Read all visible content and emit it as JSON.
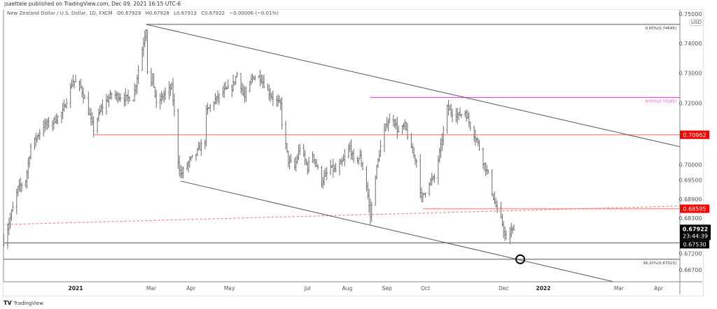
{
  "publisher": "jsaettele published on TradingView.com, Dec 09, 2021 16:15 UTC-6",
  "legend": {
    "symbol": "New Zealand Dollar / U.S. Dollar, 1D, FXCM",
    "open": "O0.67928",
    "high": "H0.67928",
    "low": "L0.67913",
    "close": "C0.67922",
    "change": "−0.00006 (−0.01%)"
  },
  "currency_badge": "USD",
  "footer_logo": "TradingView",
  "chart_data": {
    "type": "ohlc-bar",
    "scale": "log",
    "grid": false,
    "y_ticks": [
      "0.75000",
      "0.74000",
      "0.73000",
      "0.72000",
      "0.70000",
      "0.69500",
      "0.68900",
      "0.68300",
      "0.67200",
      "0.66700"
    ],
    "x_ticks": [
      {
        "label": "2021",
        "date": "2021-01-01",
        "bold": true
      },
      {
        "label": "Mar",
        "date": "2021-03-01"
      },
      {
        "label": "Apr",
        "date": "2021-04-01"
      },
      {
        "label": "May",
        "date": "2021-05-01"
      },
      {
        "label": "Jul",
        "date": "2021-07-01"
      },
      {
        "label": "Aug",
        "date": "2021-08-01"
      },
      {
        "label": "Sep",
        "date": "2021-09-01"
      },
      {
        "label": "Oct",
        "date": "2021-10-01"
      },
      {
        "label": "Dec",
        "date": "2021-12-01"
      },
      {
        "label": "2022",
        "date": "2022-01-01",
        "bold": true
      },
      {
        "label": "Mar",
        "date": "2022-03-01"
      },
      {
        "label": "Apr",
        "date": "2022-04-01"
      }
    ],
    "approx_closes": [
      [
        "2020-11-06",
        0.6758
      ],
      [
        "2020-11-11",
        0.683
      ],
      [
        "2020-11-17",
        0.6923
      ],
      [
        "2020-11-23",
        0.695
      ],
      [
        "2020-11-27",
        0.7057
      ],
      [
        "2020-12-07",
        0.7126
      ],
      [
        "2020-12-14",
        0.7137
      ],
      [
        "2020-12-22",
        0.7171
      ],
      [
        "2020-12-30",
        0.7275
      ],
      [
        "2021-01-05",
        0.7252
      ],
      [
        "2021-01-11",
        0.7171
      ],
      [
        "2021-01-15",
        0.7115
      ],
      [
        "2021-01-21",
        0.7183
      ],
      [
        "2021-01-29",
        0.7229
      ],
      [
        "2021-02-08",
        0.7217
      ],
      [
        "2021-02-15",
        0.7217
      ],
      [
        "2021-02-18",
        0.7287
      ],
      [
        "2021-02-25",
        0.7452
      ],
      [
        "2021-02-26",
        0.731
      ],
      [
        "2021-03-01",
        0.7264
      ],
      [
        "2021-03-02",
        0.7287
      ],
      [
        "2021-03-05",
        0.7194
      ],
      [
        "2021-03-11",
        0.7229
      ],
      [
        "2021-03-17",
        0.7252
      ],
      [
        "2021-03-19",
        0.7171
      ],
      [
        "2021-03-22",
        0.7012
      ],
      [
        "2021-03-24",
        0.6967
      ],
      [
        "2021-03-31",
        0.7012
      ],
      [
        "2021-04-05",
        0.7035
      ],
      [
        "2021-04-12",
        0.708
      ],
      [
        "2021-04-13",
        0.7171
      ],
      [
        "2021-04-19",
        0.7206
      ],
      [
        "2021-04-27",
        0.724
      ],
      [
        "2021-05-03",
        0.7252
      ],
      [
        "2021-05-07",
        0.7298
      ],
      [
        "2021-05-13",
        0.7217
      ],
      [
        "2021-05-19",
        0.7287
      ],
      [
        "2021-05-25",
        0.7287
      ],
      [
        "2021-05-31",
        0.724
      ],
      [
        "2021-06-04",
        0.7217
      ],
      [
        "2021-06-10",
        0.7194
      ],
      [
        "2021-06-11",
        0.7137
      ],
      [
        "2021-06-16",
        0.7012
      ],
      [
        "2021-06-21",
        0.699
      ],
      [
        "2021-06-25",
        0.7057
      ],
      [
        "2021-07-01",
        0.699
      ],
      [
        "2021-07-05",
        0.7035
      ],
      [
        "2021-07-12",
        0.6945
      ],
      [
        "2021-07-19",
        0.699
      ],
      [
        "2021-07-23",
        0.6979
      ],
      [
        "2021-07-29",
        0.7012
      ],
      [
        "2021-08-03",
        0.7057
      ],
      [
        "2021-08-06",
        0.7012
      ],
      [
        "2021-08-11",
        0.7024
      ],
      [
        "2021-08-16",
        0.6934
      ],
      [
        "2021-08-19",
        0.6835
      ],
      [
        "2021-08-23",
        0.6967
      ],
      [
        "2021-08-27",
        0.7057
      ],
      [
        "2021-09-01",
        0.7137
      ],
      [
        "2021-09-06",
        0.7149
      ],
      [
        "2021-09-10",
        0.7104
      ],
      [
        "2021-09-15",
        0.7126
      ],
      [
        "2021-09-20",
        0.7046
      ],
      [
        "2021-09-24",
        0.7012
      ],
      [
        "2021-09-28",
        0.6889
      ],
      [
        "2021-10-04",
        0.6945
      ],
      [
        "2021-10-08",
        0.6956
      ],
      [
        "2021-10-13",
        0.7057
      ],
      [
        "2021-10-18",
        0.7183
      ],
      [
        "2021-10-21",
        0.7171
      ],
      [
        "2021-10-27",
        0.716
      ],
      [
        "2021-11-01",
        0.7171
      ],
      [
        "2021-11-05",
        0.7126
      ],
      [
        "2021-11-10",
        0.708
      ],
      [
        "2021-11-15",
        0.7012
      ],
      [
        "2021-11-19",
        0.6967
      ],
      [
        "2021-11-24",
        0.6878
      ],
      [
        "2021-11-26",
        0.6856
      ],
      [
        "2021-11-30",
        0.6813
      ],
      [
        "2021-12-03",
        0.6758
      ],
      [
        "2021-12-07",
        0.679
      ],
      [
        "2021-12-09",
        0.67922
      ]
    ],
    "last_price": "0.67922",
    "countdown": "23:44:39",
    "price_tags": [
      {
        "value": "0.70962",
        "color": "#ff0000"
      },
      {
        "value": "0.68595",
        "color": "#ff0000"
      },
      {
        "value": "0.67530",
        "color": "#000000"
      }
    ],
    "drawings": {
      "fib_high": {
        "label": "0.00%(0.74645)",
        "price": 0.74645,
        "from": "2021-02-25",
        "color": "#555555"
      },
      "fib_high2": {
        "label": "0.00%(0.72185)",
        "price": 0.72185,
        "from": "2021-08-19",
        "color": "#ff33ff"
      },
      "fib_382": {
        "label": "38.20%(0.67023)",
        "price": 0.67023,
        "color": "#555555"
      },
      "resistance_1": {
        "price": 0.70962,
        "from": "2021-01-15",
        "color": "#ff9999"
      },
      "resistance_2": {
        "price": 0.68595,
        "from": "2021-09-29",
        "color": "#ff9999"
      },
      "support": {
        "price": 0.6753
      },
      "dashed_trend": {
        "from": [
          "2020-11-05",
          0.681
        ],
        "to": [
          "2022-04-18",
          0.6868
        ],
        "color": "#ff6666"
      },
      "upper_channel": {
        "from": [
          "2021-02-25",
          0.74645
        ],
        "to": [
          "2022-04-18",
          0.7057
        ]
      },
      "lower_channel": {
        "from": [
          "2021-03-24",
          0.6947
        ],
        "to": [
          "2022-03-01",
          0.663
        ]
      },
      "target_circle": {
        "date": "2021-12-14",
        "price": 0.67023
      }
    },
    "colors": {
      "bars": "#6b6b6b",
      "axis_text": "#555555",
      "last_price_bg": "#000000"
    }
  }
}
